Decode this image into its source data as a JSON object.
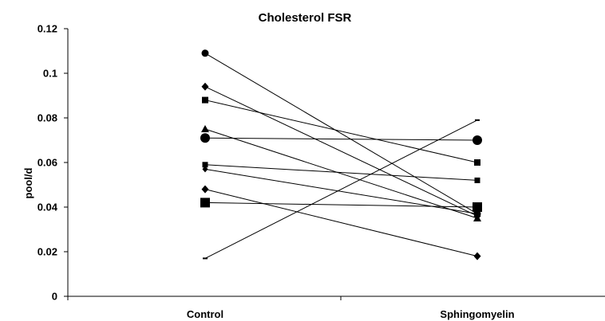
{
  "chart_data": {
    "type": "line",
    "title": "Cholesterol FSR",
    "xlabel": "",
    "ylabel": "pool/d",
    "categories": [
      "Control",
      "Sphingomyelin"
    ],
    "ylim": [
      0,
      0.12
    ],
    "yticks": [
      "0",
      "0.02",
      "0.04",
      "0.06",
      "0.08",
      "0.1",
      "0.12"
    ],
    "grid": false,
    "legend": "none",
    "series": [
      {
        "values": [
          0.109,
          0.037
        ],
        "marker": "circle"
      },
      {
        "values": [
          0.094,
          0.036
        ],
        "marker": "diamond"
      },
      {
        "values": [
          0.088,
          0.06
        ],
        "marker": "square"
      },
      {
        "values": [
          0.075,
          0.035
        ],
        "marker": "triangle"
      },
      {
        "values": [
          0.071,
          0.07
        ],
        "marker": "circle-large"
      },
      {
        "values": [
          0.059,
          0.052
        ],
        "marker": "square-small"
      },
      {
        "values": [
          0.057,
          0.037
        ],
        "marker": "diamond-small"
      },
      {
        "values": [
          0.048,
          0.018
        ],
        "marker": "diamond"
      },
      {
        "values": [
          0.042,
          0.04
        ],
        "marker": "square-large"
      },
      {
        "values": [
          0.017,
          0.079
        ],
        "marker": "dash"
      }
    ],
    "color": "#000000"
  }
}
